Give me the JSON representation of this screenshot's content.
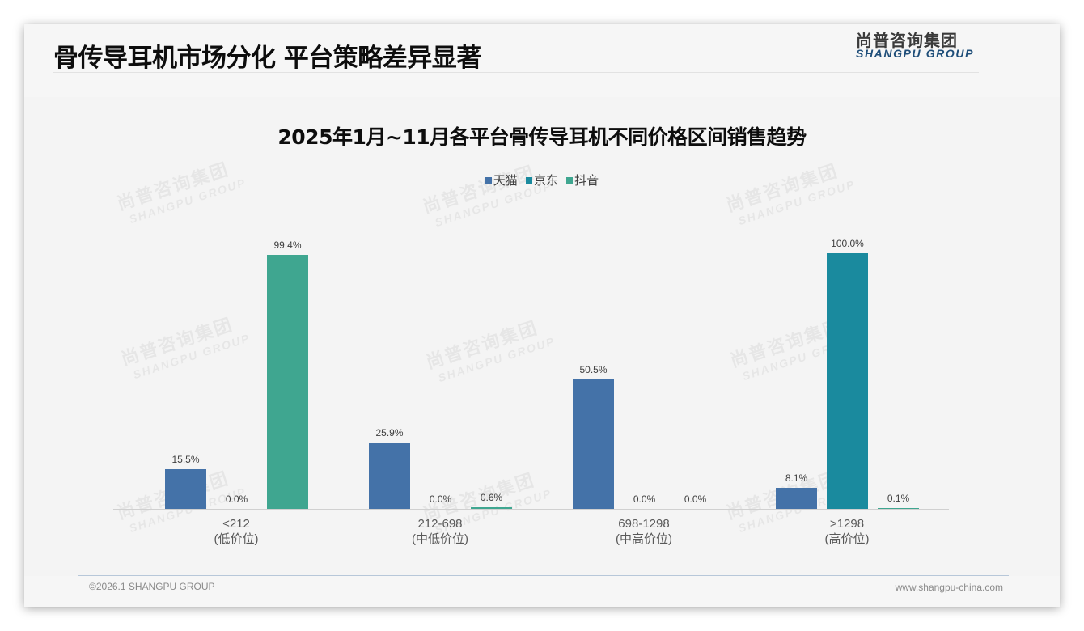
{
  "header": {
    "title": "骨传导耳机市场分化 平台策略差异显著",
    "logo_cn": "尚普咨询集团",
    "logo_en": "SHANGPU GROUP"
  },
  "watermark": {
    "cn": "尚普咨询集团",
    "en": "SHANGPU GROUP"
  },
  "footer": {
    "copyright": "©2026.1 SHANGPU GROUP",
    "website": "www.shangpu-china.com"
  },
  "colors": {
    "tmall": "#4472a8",
    "jd": "#1a8a9e",
    "douyin": "#3fa690",
    "text": "#404040"
  },
  "legend": [
    {
      "label": "天猫",
      "color": "#4472a8"
    },
    {
      "label": "京东",
      "color": "#1a8a9e"
    },
    {
      "label": "抖音",
      "color": "#3fa690"
    }
  ],
  "categories": [
    {
      "range": "<212",
      "tier": "(低价位)"
    },
    {
      "range": "212-698",
      "tier": "(中低价位)"
    },
    {
      "range": "698-1298",
      "tier": "(中高价位)"
    },
    {
      "range": ">1298",
      "tier": "(高价位)"
    }
  ],
  "chart_data": {
    "type": "bar",
    "title": "2025年1月~11月各平台骨传导耳机不同价格区间销售趋势",
    "categories": [
      "<212 (低价位)",
      "212-698 (中低价位)",
      "698-1298 (中高价位)",
      ">1298 (高价位)"
    ],
    "series": [
      {
        "name": "天猫",
        "values": [
          15.5,
          25.9,
          50.5,
          8.1
        ],
        "labels": [
          "15.5%",
          "25.9%",
          "50.5%",
          "8.1%"
        ]
      },
      {
        "name": "京东",
        "values": [
          0.0,
          0.0,
          0.0,
          100.0
        ],
        "labels": [
          "0.0%",
          "0.0%",
          "0.0%",
          "100.0%"
        ]
      },
      {
        "name": "抖音",
        "values": [
          99.4,
          0.6,
          0.0,
          0.1
        ],
        "labels": [
          "99.4%",
          "0.6%",
          "0.0%",
          "0.1%"
        ]
      }
    ],
    "xlabel": "",
    "ylabel": "",
    "ylim": [
      0,
      100
    ],
    "unit": "%",
    "grid": false,
    "y_axis_visible": false,
    "legend_position": "top"
  }
}
